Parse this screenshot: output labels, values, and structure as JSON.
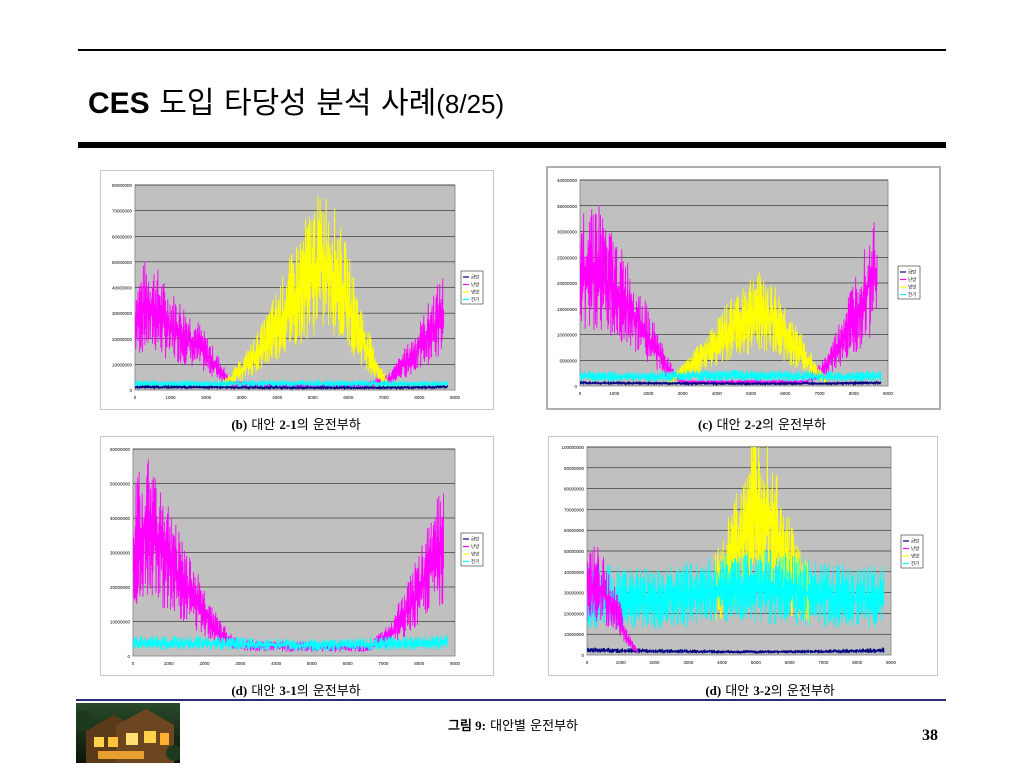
{
  "slide": {
    "title_main": "CES",
    "title_korean": "도입 타당성 분석 사례",
    "title_paren": "(8/25)",
    "page_number": "38",
    "figure_caption_label": "그림 9:",
    "figure_caption_text": "대안별 운전부하"
  },
  "legend_labels": [
    "급탕",
    "난방",
    "냉방",
    "전기"
  ],
  "series_colors": {
    "급탕": "#000080",
    "난방": "#ff00ff",
    "냉방": "#ffff00",
    "전기": "#00ffff"
  },
  "panels": [
    {
      "caption_id": "(b)",
      "caption_text": "대안",
      "caption_alt": "2-1",
      "caption_suffix": "의 운전부하",
      "chart_data": {
        "type": "line",
        "x_ticks": [
          "0",
          "1000",
          "2000",
          "3000",
          "4000",
          "5000",
          "6000",
          "7000",
          "8000",
          "9000"
        ],
        "y_ticks": [
          "0",
          "10000000",
          "20000000",
          "30000000",
          "40000000",
          "50000000",
          "60000000",
          "70000000",
          "80000000"
        ],
        "ylim": [
          0,
          80000000
        ],
        "xlim": [
          0,
          9000
        ],
        "series": [
          {
            "name": "난방",
            "x": [
              0,
              300,
              600,
              900,
              1200,
              1500,
              1800,
              2100,
              2400,
              2700,
              6000,
              6600,
              7200,
              7500,
              7800,
              8100,
              8400,
              8700
            ],
            "values": [
              35000000,
              42000000,
              40000000,
              33000000,
              30000000,
              26000000,
              22000000,
              16000000,
              10000000,
              3000000,
              2000000,
              3000000,
              6000000,
              12000000,
              17000000,
              24000000,
              32000000,
              38000000
            ]
          },
          {
            "name": "냉방",
            "x": [
              2400,
              3000,
              3600,
              4200,
              4800,
              5100,
              5400,
              5700,
              6000,
              6300,
              6600,
              6900,
              7200
            ],
            "values": [
              2000000,
              10000000,
              22000000,
              38000000,
              55000000,
              62000000,
              64000000,
              56000000,
              44000000,
              30000000,
              18000000,
              8000000,
              2000000
            ]
          },
          {
            "name": "전기",
            "x": [
              0,
              1000,
              2000,
              3000,
              4000,
              5000,
              6000,
              7000,
              8000,
              8800
            ],
            "values": [
              3200000,
              3100000,
              3000000,
              3200000,
              3300000,
              3300000,
              3200000,
              3100000,
              3000000,
              3100000
            ]
          },
          {
            "name": "급탕",
            "x": [
              0,
              2000,
              4000,
              6000,
              8000,
              8800
            ],
            "values": [
              1500000,
              1400000,
              1200000,
              1100000,
              1300000,
              1500000
            ]
          }
        ]
      }
    },
    {
      "caption_id": "(c)",
      "caption_text": "대안",
      "caption_alt": "2-2",
      "caption_suffix": "의 운전부하",
      "chart_data": {
        "type": "line",
        "x_ticks": [
          "0",
          "1000",
          "2000",
          "3000",
          "4000",
          "5000",
          "6000",
          "7000",
          "8000",
          "9000"
        ],
        "y_ticks": [
          "0",
          "5000000",
          "10000000",
          "15000000",
          "20000000",
          "25000000",
          "30000000",
          "35000000",
          "40000000"
        ],
        "ylim": [
          0,
          40000000
        ],
        "xlim": [
          0,
          9000
        ],
        "series": [
          {
            "name": "난방",
            "x": [
              0,
              300,
              600,
              900,
              1200,
              1500,
              1800,
              2100,
              2400,
              2700,
              3000,
              6600,
              7200,
              7500,
              7800,
              8100,
              8400,
              8700
            ],
            "values": [
              27000000,
              31000000,
              29000000,
              25000000,
              22000000,
              19000000,
              15000000,
              11000000,
              7000000,
              3000000,
              1000000,
              1000000,
              5000000,
              9000000,
              14000000,
              19000000,
              25000000,
              30000000
            ]
          },
          {
            "name": "냉방",
            "x": [
              2600,
              3200,
              3800,
              4400,
              4800,
              5200,
              5600,
              6000,
              6400,
              6800,
              7200
            ],
            "values": [
              1000000,
              5000000,
              9000000,
              14000000,
              17000000,
              18500000,
              17000000,
              13000000,
              9000000,
              5000000,
              1000000
            ]
          },
          {
            "name": "전기",
            "x": [
              0,
              1000,
              2000,
              3000,
              4000,
              5000,
              6000,
              7000,
              8000,
              8800
            ],
            "values": [
              2500000,
              2400000,
              2300000,
              2500000,
              2600000,
              2600000,
              2500000,
              2400000,
              2300000,
              2500000
            ]
          },
          {
            "name": "급탕",
            "x": [
              0,
              2000,
              4000,
              6000,
              8000,
              8800
            ],
            "values": [
              800000,
              700000,
              600000,
              600000,
              700000,
              800000
            ]
          }
        ]
      }
    },
    {
      "caption_id": "(d)",
      "caption_text": "대안",
      "caption_alt": "3-1",
      "caption_suffix": "의 운전부하",
      "chart_data": {
        "type": "line",
        "x_ticks": [
          "0",
          "1000",
          "2000",
          "3000",
          "4000",
          "5000",
          "6000",
          "7000",
          "8000",
          "9000"
        ],
        "y_ticks": [
          "0",
          "10000000",
          "20000000",
          "30000000",
          "40000000",
          "50000000",
          "60000000"
        ],
        "ylim": [
          0,
          60000000
        ],
        "xlim": [
          0,
          9000
        ],
        "series": [
          {
            "name": "난방",
            "x": [
              0,
              300,
              600,
              900,
              1200,
              1500,
              1800,
              2100,
              2400,
              2700,
              3000,
              6600,
              7200,
              7500,
              7800,
              8100,
              8400,
              8700
            ],
            "values": [
              40000000,
              48000000,
              45000000,
              38000000,
              32000000,
              26000000,
              20000000,
              14000000,
              9000000,
              6000000,
              4000000,
              3000000,
              8000000,
              14000000,
              20000000,
              27000000,
              36000000,
              44000000
            ]
          },
          {
            "name": "전기",
            "x": [
              0,
              1000,
              2000,
              3000,
              4000,
              5000,
              6000,
              7000,
              8000,
              8800
            ],
            "values": [
              5000000,
              4800000,
              4700000,
              4500000,
              4200000,
              4000000,
              4300000,
              4600000,
              4900000,
              5100000
            ]
          }
        ]
      }
    },
    {
      "caption_id": "(d)",
      "caption_text": "대안",
      "caption_alt": "3-2",
      "caption_suffix": "의 운전부하",
      "chart_data": {
        "type": "line",
        "x_ticks": [
          "0",
          "1000",
          "2000",
          "3000",
          "4000",
          "5000",
          "6000",
          "7000",
          "8000",
          "9000"
        ],
        "y_ticks": [
          "0",
          "10000000",
          "20000000",
          "30000000",
          "40000000",
          "50000000",
          "60000000",
          "70000000",
          "80000000",
          "90000000",
          "100000000"
        ],
        "ylim": [
          0,
          100000000
        ],
        "xlim": [
          0,
          9000
        ],
        "series": [
          {
            "name": "냉방",
            "x": [
              3800,
              4200,
              4600,
              5000,
              5200,
              5400,
              5800,
              6200,
              6600
            ],
            "values": [
              40000000,
              55000000,
              75000000,
              86000000,
              88000000,
              84000000,
              65000000,
              45000000,
              35000000
            ]
          },
          {
            "name": "전기",
            "x": [
              0,
              1000,
              2000,
              3000,
              4000,
              5000,
              6000,
              7000,
              8000,
              8800
            ],
            "values": [
              36000000,
              35000000,
              34000000,
              37000000,
              40000000,
              42000000,
              40000000,
              37000000,
              35000000,
              36000000
            ]
          },
          {
            "name": "급탕",
            "x": [
              0,
              2000,
              4000,
              6000,
              8000,
              8800
            ],
            "values": [
              3000000,
              2500000,
              2000000,
              2000000,
              2500000,
              3000000
            ]
          },
          {
            "name": "난방",
            "x": [
              0,
              300,
              600,
              900,
              1200,
              1500
            ],
            "values": [
              40000000,
              45000000,
              35000000,
              25000000,
              10000000,
              2000000
            ]
          }
        ]
      }
    }
  ]
}
